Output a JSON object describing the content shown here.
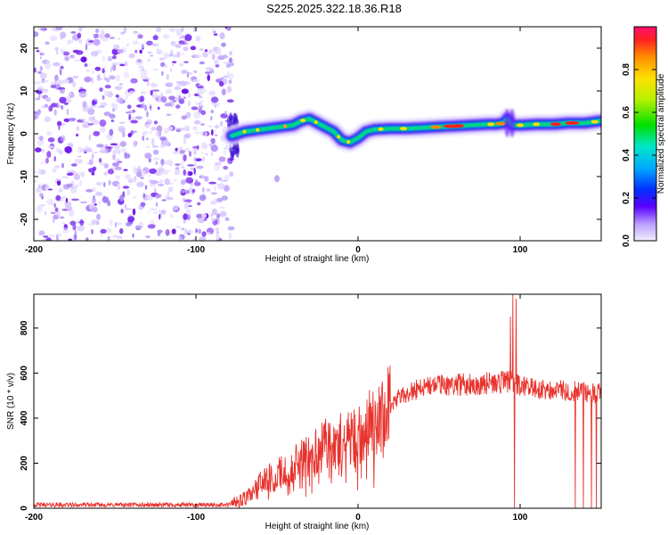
{
  "title": "S225.2025.322.18.36.R18",
  "chart_data": [
    {
      "type": "heatmap",
      "xlabel": "Height of straight line (km)",
      "ylabel": "Frequency (Hz)",
      "xlim": [
        -200,
        150
      ],
      "ylim": [
        -25,
        25
      ],
      "xticks": [
        -200,
        -100,
        0,
        100
      ],
      "yticks": [
        -20,
        -10,
        0,
        10,
        20
      ],
      "noise_region_x": [
        -200,
        -78
      ],
      "ridge": {
        "name": "Spectral ridge",
        "x": [
          -78,
          -70,
          -60,
          -50,
          -40,
          -35,
          -30,
          -25,
          -20,
          -15,
          -10,
          -5,
          0,
          5,
          10,
          20,
          30,
          40,
          50,
          60,
          70,
          80,
          85,
          90,
          92,
          95,
          100,
          110,
          120,
          130,
          140,
          150
        ],
        "y": [
          -0.5,
          0.5,
          1,
          1.5,
          2,
          3,
          3.5,
          2.5,
          1.5,
          0.5,
          -1.5,
          -2,
          -1,
          0.5,
          1,
          1.2,
          1.2,
          1.4,
          1.6,
          1.8,
          2,
          2.2,
          2.2,
          2.5,
          3.5,
          2,
          2,
          2.2,
          2.2,
          2.5,
          2.5,
          3
        ]
      },
      "spike_x": [
        92,
        95
      ],
      "noise_blob": {
        "x": -50,
        "y": -10.5
      },
      "colorbar": {
        "label": "Normalized spectral amplitude",
        "range": [
          0,
          1
        ],
        "ticks": [
          0.0,
          0.2,
          0.4,
          0.6,
          0.8
        ]
      }
    },
    {
      "type": "line",
      "xlabel": "Height of straight line (km)",
      "ylabel": "SNR (10 * v/v)",
      "xlim": [
        -200,
        150
      ],
      "ylim": [
        0,
        950
      ],
      "xticks": [
        -200,
        -100,
        0,
        100
      ],
      "yticks": [
        0,
        200,
        400,
        600,
        800
      ],
      "series": [
        {
          "name": "SNR",
          "color": "#e8332d",
          "profile_x": [
            -200,
            -80,
            -70,
            -60,
            -50,
            -40,
            -30,
            -20,
            -10,
            0,
            10,
            20,
            30,
            40,
            50,
            60,
            70,
            80,
            90,
            95,
            100,
            110,
            120,
            130,
            140,
            150
          ],
          "profile_y": [
            15,
            15,
            40,
            110,
            150,
            190,
            240,
            280,
            300,
            340,
            400,
            460,
            510,
            540,
            545,
            550,
            550,
            555,
            560,
            560,
            540,
            530,
            525,
            520,
            515,
            510
          ],
          "spikes": [
            {
              "x": 94,
              "y": 850
            },
            {
              "x": 95.5,
              "y": 950
            },
            {
              "x": 96.5,
              "y": 0
            },
            {
              "x": 97.5,
              "y": 930
            },
            {
              "x": 134,
              "y": 0
            },
            {
              "x": 139,
              "y": 0
            },
            {
              "x": 144,
              "y": 0
            },
            {
              "x": 147,
              "y": 0
            }
          ]
        }
      ]
    }
  ]
}
